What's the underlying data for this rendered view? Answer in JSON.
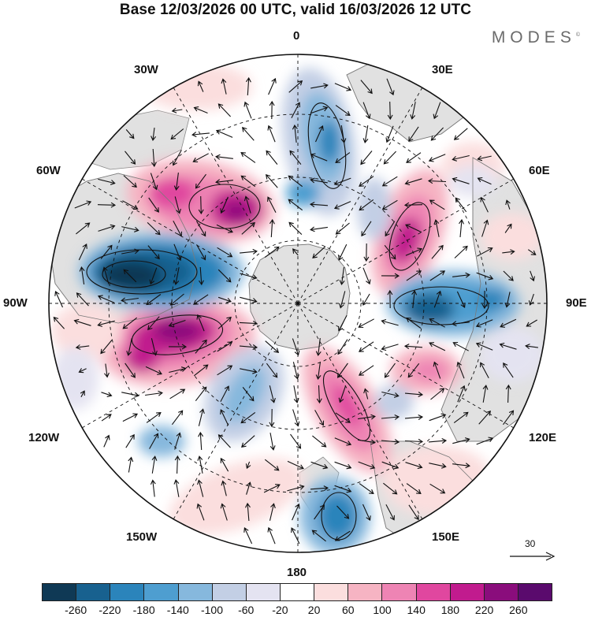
{
  "title": "Base 12/03/2026 00 UTC, valid 16/03/2026 12 UTC",
  "brand": {
    "name": "MODES",
    "mark": "©"
  },
  "coordinates": {
    "top": "0",
    "bottom": "180",
    "left": "90W",
    "right": "90E",
    "upper_left_1": "30W",
    "upper_left_2": "60W",
    "upper_right_1": "30E",
    "upper_right_2": "60E",
    "lower_left_1": "120W",
    "lower_left_2": "150W",
    "lower_right_1": "120E",
    "lower_right_2": "150E"
  },
  "vector_scale": {
    "label": "30",
    "icon": "arrow-right-icon"
  },
  "colorbar": {
    "colors": [
      "#0f3955",
      "#18618f",
      "#2b84bb",
      "#4e9ed0",
      "#86b8dd",
      "#c3cfe5",
      "#e4e3f1",
      "#ffffff",
      "#fbdede",
      "#f6b4c3",
      "#ee84b4",
      "#e0479f",
      "#c11b8e",
      "#8a0d7c",
      "#5a0a6d"
    ],
    "ticks": [
      "-260",
      "-220",
      "-180",
      "-140",
      "-100",
      "-60",
      "-20",
      "20",
      "60",
      "100",
      "140",
      "180",
      "220",
      "260"
    ]
  },
  "map_colors": {
    "land": "#e1e1e1",
    "coast": "#777777",
    "grid": "#111111",
    "vectors": "#111111"
  }
}
